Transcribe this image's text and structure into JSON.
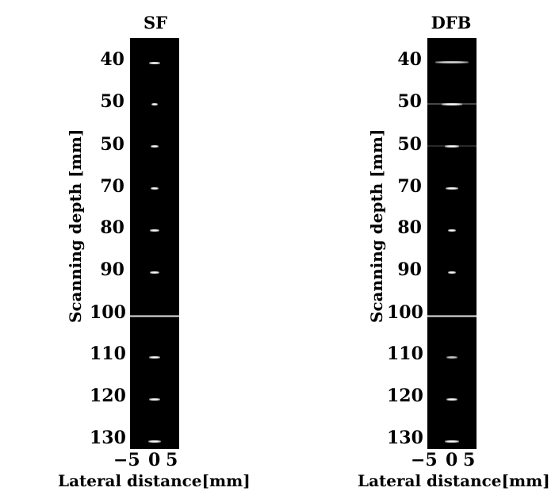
{
  "panels": [
    {
      "title": "SF",
      "y_axis_label": "Scanning depth [mm]",
      "x_axis_label": "Lateral distance[mm]",
      "y_ticks": [
        "40",
        "50",
        "50",
        "70",
        "80",
        "90",
        "100",
        "110",
        "120",
        "130"
      ],
      "x_ticks": [
        "−5",
        "0",
        "5"
      ]
    },
    {
      "title": "DFB",
      "y_axis_label": "Scanning depth [mm]",
      "x_axis_label": "Lateral distance[mm]",
      "y_ticks": [
        "40",
        "50",
        "50",
        "70",
        "80",
        "90",
        "100",
        "110",
        "120",
        "130"
      ],
      "x_ticks": [
        "−5",
        "0",
        "5"
      ]
    }
  ],
  "colors": {
    "background": "#000000",
    "reflector": "#ffffff"
  }
}
